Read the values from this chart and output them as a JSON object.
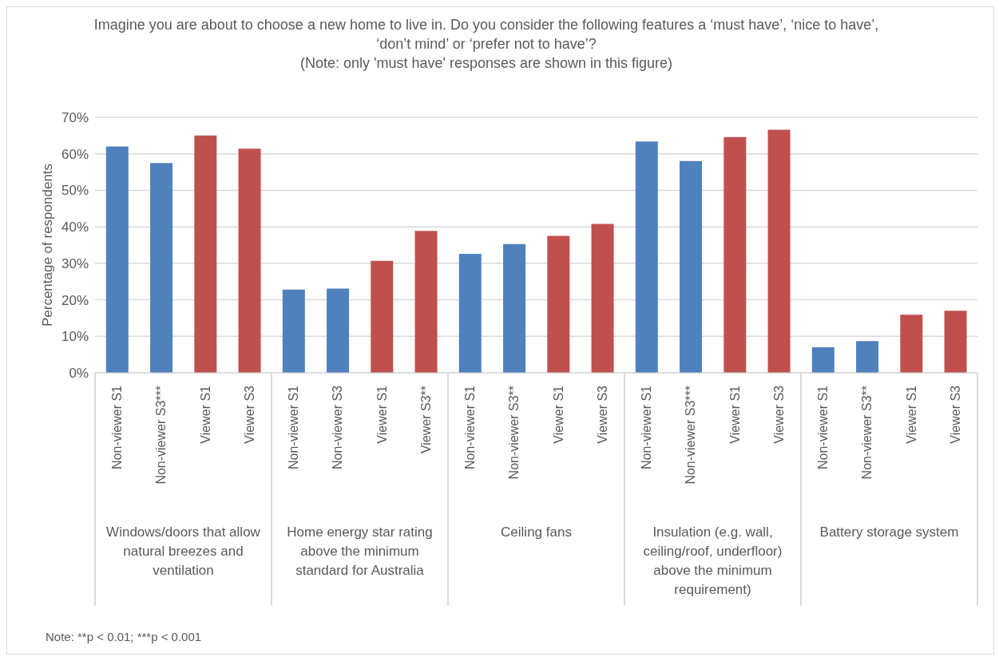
{
  "chart_data": {
    "type": "bar",
    "title": "Imagine you are about to choose a new home to live in. Do you consider the following features a ‘must have’, ‘nice to have’, ‘don’t mind’ or ‘prefer not to have’?",
    "subtitle": "(Note: only 'must have' responses are shown in this figure)",
    "ylabel": "Percentage of respondents",
    "categories": [
      "Non-viewer S1",
      "Non-viewer S3***",
      "Viewer S1",
      "Viewer S3",
      "Non-viewer S1",
      "Non-viewer S3",
      "Viewer S1",
      "Viewer S3**",
      "Non-viewer S1",
      "Non-viewer S3**",
      "Viewer S1",
      "Viewer S3",
      "Non-viewer S1",
      "Non-viewer S3***",
      "Viewer S1",
      "Viewer S3",
      "Non-viewer S1",
      "Non-viewer S3**",
      "Viewer S1",
      "Viewer S3"
    ],
    "values": [
      62,
      57.5,
      65,
      61.4,
      22.8,
      23.1,
      30.7,
      38.9,
      32.6,
      35.3,
      37.5,
      40.8,
      63.4,
      58,
      64.6,
      66.6,
      7,
      8.7,
      15.9,
      17
    ],
    "colors": [
      "#4f81bd",
      "#4f81bd",
      "#c0504d",
      "#c0504d",
      "#4f81bd",
      "#4f81bd",
      "#c0504d",
      "#c0504d",
      "#4f81bd",
      "#4f81bd",
      "#c0504d",
      "#c0504d",
      "#4f81bd",
      "#4f81bd",
      "#c0504d",
      "#c0504d",
      "#4f81bd",
      "#4f81bd",
      "#c0504d",
      "#c0504d"
    ],
    "ylim": [
      0,
      70
    ],
    "yticks": [
      {
        "value": 0,
        "label": "0%"
      },
      {
        "value": 10,
        "label": "10%"
      },
      {
        "value": 20,
        "label": "20%"
      },
      {
        "value": 30,
        "label": "30%"
      },
      {
        "value": 40,
        "label": "40%"
      },
      {
        "value": 50,
        "label": "50%"
      },
      {
        "value": 60,
        "label": "60%"
      },
      {
        "value": 70,
        "label": "70%"
      }
    ],
    "grid": "y",
    "annotations": [
      "Windows/doors that allow natural breezes and ventilation",
      "Home energy star rating above the minimum standard for Australia",
      "Ceiling fans",
      "Insulation (e.g. wall, ceiling/roof, underfloor) above the minimum requirement)",
      "Battery storage system",
      "Note: **p < 0.01; ***p < 0.001"
    ]
  }
}
